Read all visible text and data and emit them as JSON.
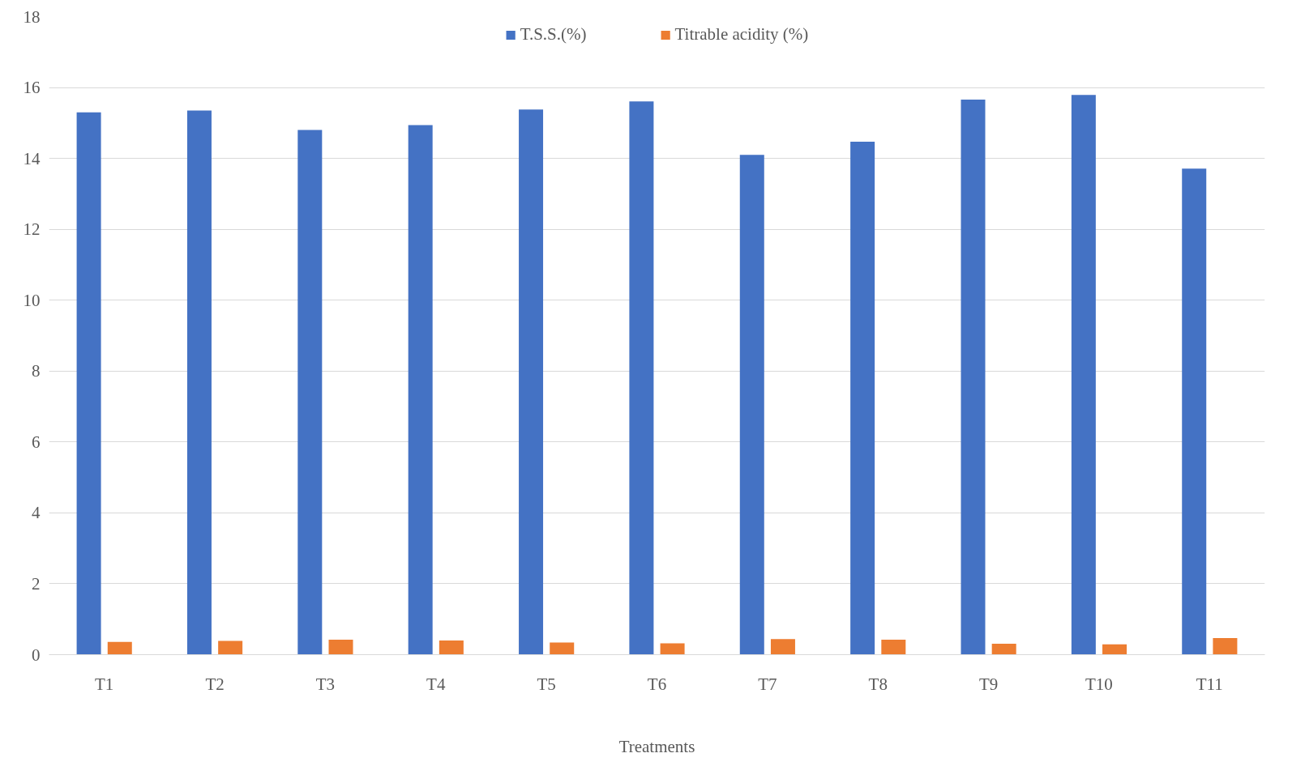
{
  "chart_data": {
    "type": "bar",
    "xlabel": "Treatments",
    "categories": [
      "T1",
      "T2",
      "T3",
      "T4",
      "T5",
      "T6",
      "T7",
      "T8",
      "T9",
      "T10",
      "T11"
    ],
    "series": [
      {
        "name": "T.S.S.(%)",
        "color": "#4472c4",
        "values": [
          15.3,
          15.35,
          14.8,
          14.94,
          15.38,
          15.61,
          14.1,
          14.47,
          15.66,
          15.79,
          13.71
        ]
      },
      {
        "name": "Titrable acidity (%)",
        "color": "#ed7d31",
        "values": [
          0.36,
          0.39,
          0.42,
          0.4,
          0.34,
          0.32,
          0.44,
          0.42,
          0.31,
          0.29,
          0.47
        ]
      }
    ],
    "ylim": [
      0,
      18
    ],
    "yticks": [
      0,
      2,
      4,
      6,
      8,
      10,
      12,
      14,
      16,
      18
    ],
    "grid": "y",
    "legend": "top"
  }
}
